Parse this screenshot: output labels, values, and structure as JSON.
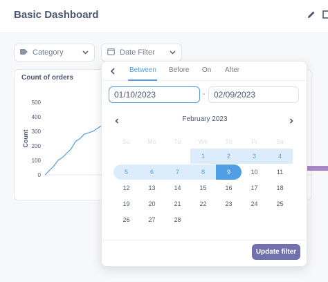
{
  "header": {
    "title": "Basic Dashboard",
    "edit_icon": "pencil-icon",
    "share_icon": "share-icon"
  },
  "filters": [
    {
      "label": "Category",
      "icon": "tag-icon"
    },
    {
      "label": "Date Filter",
      "icon": "calendar-icon"
    }
  ],
  "card": {
    "title": "Count of orders"
  },
  "chart_data": {
    "type": "line",
    "title": "Count of orders",
    "ylabel": "Count",
    "xlabel": "",
    "ylim": [
      0,
      500
    ],
    "yticks": [
      "0",
      "100",
      "200",
      "300",
      "400",
      "500"
    ],
    "series": [
      {
        "values": [
          0,
          30,
          60,
          100,
          120,
          150,
          180,
          230,
          250,
          280,
          290,
          300,
          320,
          340
        ]
      }
    ],
    "color": "#509ee3"
  },
  "popover": {
    "tabs": [
      "Between",
      "Before",
      "On",
      "After"
    ],
    "active_tab": "Between",
    "start_date": "01/10/2023",
    "end_date": "02/09/2023",
    "separator": "-",
    "month": "February 2023",
    "weekdays": [
      "Su",
      "Mo",
      "Tu",
      "We",
      "Th",
      "Fr",
      "Sa"
    ],
    "weeks": [
      [
        "",
        "",
        "",
        "1",
        "2",
        "3",
        "4"
      ],
      [
        "5",
        "6",
        "7",
        "8",
        "9",
        "10",
        "11"
      ],
      [
        "12",
        "13",
        "14",
        "15",
        "16",
        "17",
        "18"
      ],
      [
        "19",
        "20",
        "21",
        "22",
        "23",
        "24",
        "25"
      ],
      [
        "26",
        "27",
        "28",
        "",
        "",
        "",
        ""
      ]
    ],
    "range_start_day": 1,
    "range_end_day": 9,
    "update_label": "Update filter",
    "colors": {
      "accent": "#509ee3",
      "range": "#ddecfa",
      "button": "#7172ad"
    }
  }
}
